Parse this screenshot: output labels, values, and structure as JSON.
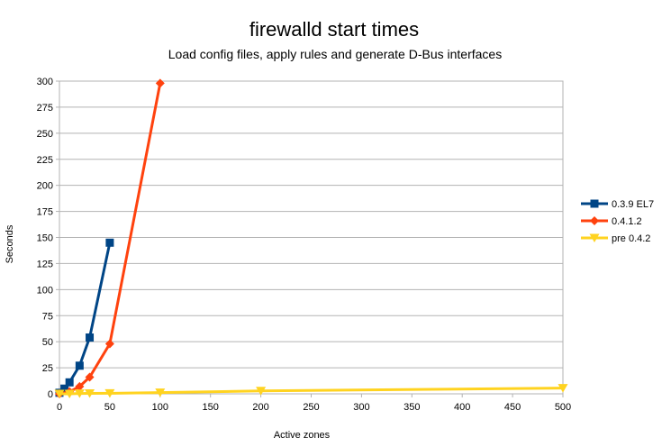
{
  "chart_data": {
    "type": "line",
    "title": "firewalld start times",
    "subtitle": "Load config files, apply rules and generate D-Bus interfaces",
    "xlabel": "Active zones",
    "ylabel": "Seconds",
    "xlim": [
      0,
      500
    ],
    "ylim": [
      0,
      300
    ],
    "x_ticks": [
      "0",
      "50",
      "100",
      "150",
      "200",
      "250",
      "300",
      "350",
      "400",
      "450",
      "500"
    ],
    "y_ticks": [
      "0",
      "25",
      "50",
      "75",
      "100",
      "125",
      "150",
      "175",
      "200",
      "225",
      "250",
      "275",
      "300"
    ],
    "grid": "horizontal",
    "legend_position": "right",
    "series": [
      {
        "name": "0.3.9 EL7",
        "color": "#004586",
        "marker": "square",
        "points": [
          [
            0,
            1
          ],
          [
            5,
            5
          ],
          [
            10,
            11
          ],
          [
            20,
            27
          ],
          [
            30,
            54
          ],
          [
            50,
            145
          ]
        ]
      },
      {
        "name": "0.4.1.2",
        "color": "#ff420e",
        "marker": "diamond",
        "points": [
          [
            0,
            0
          ],
          [
            10,
            2
          ],
          [
            20,
            7
          ],
          [
            30,
            16
          ],
          [
            50,
            48
          ],
          [
            100,
            298
          ]
        ]
      },
      {
        "name": "pre 0.4.2",
        "color": "#ffd320",
        "marker": "triangle-down",
        "points": [
          [
            0,
            0
          ],
          [
            10,
            0
          ],
          [
            20,
            0.3
          ],
          [
            30,
            0.4
          ],
          [
            50,
            0.5
          ],
          [
            100,
            1.2
          ],
          [
            200,
            2.8
          ],
          [
            500,
            5.5
          ]
        ]
      }
    ]
  }
}
